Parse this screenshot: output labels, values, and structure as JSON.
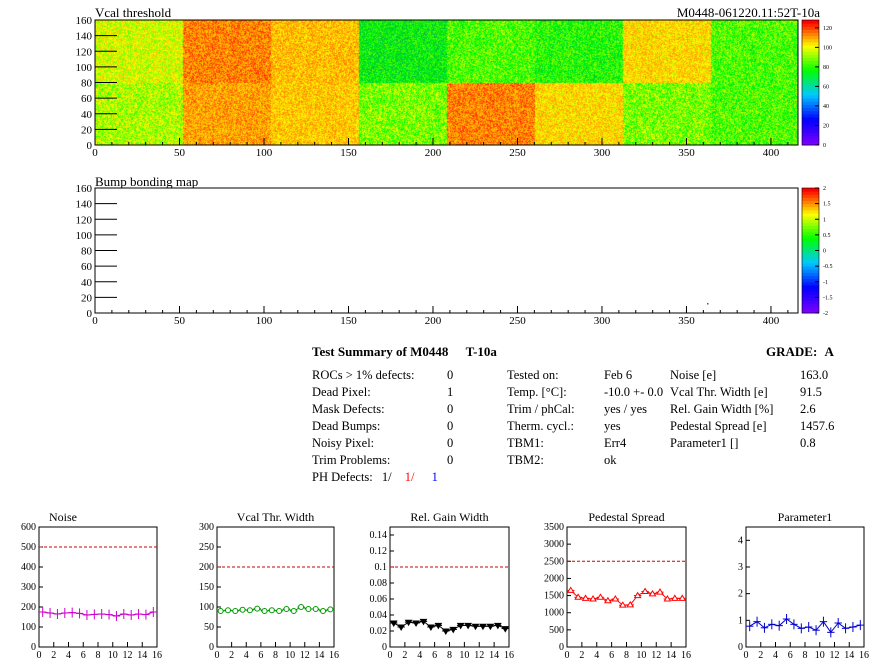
{
  "vcal_map": {
    "title": "Vcal threshold",
    "module_id": "M0448-061220.11:52T-10a",
    "x_ticks": [
      "0",
      "50",
      "100",
      "150",
      "200",
      "250",
      "300",
      "350",
      "400"
    ],
    "y_ticks": [
      "0",
      "20",
      "40",
      "60",
      "80",
      "100",
      "120",
      "140",
      "160"
    ],
    "z_ticks": [
      "0",
      "20",
      "40",
      "60",
      "80",
      "100",
      "120"
    ],
    "xlim": [
      0,
      416
    ],
    "ylim": [
      0,
      160
    ],
    "zlim": [
      0,
      128
    ]
  },
  "bump_map": {
    "title": "Bump bonding map",
    "x_ticks": [
      "0",
      "50",
      "100",
      "150",
      "200",
      "250",
      "300",
      "350",
      "400"
    ],
    "y_ticks": [
      "0",
      "20",
      "40",
      "60",
      "80",
      "100",
      "120",
      "140",
      "160"
    ],
    "z_ticks": [
      "-2",
      "-1.5",
      "-1",
      "-0.5",
      "0",
      "0.5",
      "1",
      "1.5",
      "2"
    ]
  },
  "summary": {
    "title": "Test Summary of M0448",
    "test_name": "T-10a",
    "grade_label": "GRADE:",
    "grade": "A",
    "rows": [
      {
        "label": "ROCs > 1% defects:",
        "value": "0"
      },
      {
        "label": "Dead Pixel:",
        "value": "1"
      },
      {
        "label": "Mask Defects:",
        "value": "0"
      },
      {
        "label": "Dead Bumps:",
        "value": "0"
      },
      {
        "label": "Noisy Pixel:",
        "value": "0"
      },
      {
        "label": "Trim Problems:",
        "value": "0"
      }
    ],
    "ph_defects_label": "PH Defects:",
    "ph_defects": [
      "1/",
      "1/",
      "1"
    ],
    "ph_colors": [
      "#000000",
      "#ff0000",
      "#0000ff"
    ],
    "mid": [
      {
        "label": "Tested on:",
        "value": "Feb 6"
      },
      {
        "label": "Temp. [°C]:",
        "value": "-10.0 +- 0.0"
      },
      {
        "label": "Trim / phCal:",
        "value": "yes / yes"
      },
      {
        "label": "Therm. cycl.:",
        "value": "yes"
      },
      {
        "label": "TBM1:",
        "value": "Err4"
      },
      {
        "label": "TBM2:",
        "value": "ok"
      }
    ],
    "right": [
      {
        "label": "Noise [e]",
        "value": "163.0"
      },
      {
        "label": "Vcal Thr. Width [e]",
        "value": "91.5"
      },
      {
        "label": "Rel. Gain Width [%]",
        "value": "2.6"
      },
      {
        "label": "Pedestal Spread [e]",
        "value": "1457.6"
      },
      {
        "label": "Parameter1 []",
        "value": "0.8"
      }
    ]
  },
  "chart_data": [
    {
      "type": "scatter",
      "title": "Noise",
      "color": "#cc00cc",
      "marker": "cross",
      "x": [
        0,
        1,
        2,
        3,
        4,
        5,
        6,
        7,
        8,
        9,
        10,
        11,
        12,
        13,
        14,
        15
      ],
      "values": [
        175,
        170,
        165,
        170,
        172,
        168,
        160,
        163,
        165,
        162,
        155,
        165,
        160,
        165,
        162,
        175
      ],
      "ylim": [
        0,
        600
      ],
      "yticks": [
        "0",
        "100",
        "200",
        "300",
        "400",
        "500",
        "600"
      ],
      "ref": 500,
      "xticks": [
        "0",
        "2",
        "4",
        "6",
        "8",
        "10",
        "12",
        "14",
        "16"
      ]
    },
    {
      "type": "scatter",
      "title": "Vcal Thr. Width",
      "color": "#009900",
      "marker": "circle",
      "x": [
        0,
        1,
        2,
        3,
        4,
        5,
        6,
        7,
        8,
        9,
        10,
        11,
        12,
        13,
        14,
        15
      ],
      "values": [
        90,
        92,
        90,
        93,
        92,
        96,
        90,
        92,
        90,
        95,
        90,
        100,
        95,
        95,
        90,
        94
      ],
      "ylim": [
        0,
        300
      ],
      "yticks": [
        "0",
        "50",
        "100",
        "150",
        "200",
        "250",
        "300"
      ],
      "ref": 200,
      "xticks": [
        "0",
        "2",
        "4",
        "6",
        "8",
        "10",
        "12",
        "14",
        "16"
      ]
    },
    {
      "type": "line",
      "title": "Rel. Gain Width",
      "color": "#000000",
      "marker": "triangle-down",
      "x": [
        0,
        1,
        2,
        3,
        4,
        5,
        6,
        7,
        8,
        9,
        10,
        11,
        12,
        13,
        14,
        15
      ],
      "values": [
        0.03,
        0.025,
        0.031,
        0.03,
        0.032,
        0.025,
        0.027,
        0.02,
        0.022,
        0.027,
        0.027,
        0.026,
        0.026,
        0.026,
        0.027,
        0.023
      ],
      "ylim": [
        0,
        0.15
      ],
      "yticks": [
        "0",
        "0.02",
        "0.04",
        "0.06",
        "0.08",
        "0.1",
        "0.12",
        "0.14"
      ],
      "ref": 0.1,
      "xticks": [
        "0",
        "2",
        "4",
        "6",
        "8",
        "10",
        "12",
        "14",
        "16"
      ]
    },
    {
      "type": "line",
      "title": "Pedestal Spread",
      "color": "#ff0000",
      "marker": "triangle",
      "x": [
        0,
        1,
        2,
        3,
        4,
        5,
        6,
        7,
        8,
        9,
        10,
        11,
        12,
        13,
        14,
        15
      ],
      "values": [
        1650,
        1450,
        1420,
        1400,
        1450,
        1350,
        1400,
        1220,
        1230,
        1500,
        1620,
        1550,
        1600,
        1400,
        1420,
        1420
      ],
      "ylim": [
        0,
        3500
      ],
      "yticks": [
        "0",
        "500",
        "1000",
        "1500",
        "2000",
        "2500",
        "3000",
        "3500"
      ],
      "ref": 2500,
      "xticks": [
        "0",
        "2",
        "4",
        "6",
        "8",
        "10",
        "12",
        "14",
        "16"
      ]
    },
    {
      "type": "scatter",
      "title": "Parameter1",
      "color": "#0000cc",
      "marker": "cross",
      "x": [
        0,
        1,
        2,
        3,
        4,
        5,
        6,
        7,
        8,
        9,
        10,
        11,
        12,
        13,
        14,
        15
      ],
      "values": [
        0.78,
        0.95,
        0.72,
        0.85,
        0.8,
        1.05,
        0.85,
        0.7,
        0.75,
        0.63,
        0.95,
        0.55,
        0.9,
        0.7,
        0.75,
        0.82
      ],
      "ylim": [
        0,
        4.5
      ],
      "yticks": [
        "0",
        "1",
        "2",
        "3",
        "4"
      ],
      "ref": null,
      "xticks": [
        "0",
        "2",
        "4",
        "6",
        "8",
        "10",
        "12",
        "14",
        "16"
      ]
    }
  ]
}
